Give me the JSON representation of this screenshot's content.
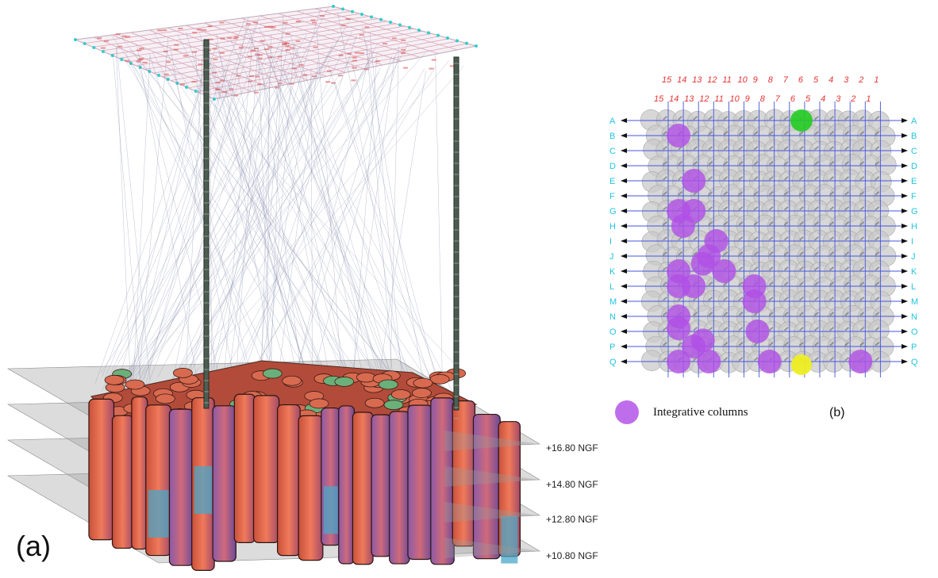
{
  "panel_a": {
    "label": "(a)",
    "levels": [
      "+16.80 NGF",
      "+14.80 NGF",
      "+12.80 NGF",
      "+10.80 NGF"
    ]
  },
  "panel_b": {
    "label": "(b)",
    "top_numbers_upper": [
      "15",
      "14",
      "13",
      "12",
      "11",
      "10",
      "9",
      "8",
      "7",
      "6",
      "5",
      "4",
      "3",
      "2",
      "1"
    ],
    "top_numbers_lower": [
      "15",
      "14",
      "13",
      "12",
      "11",
      "10",
      "9",
      "8",
      "7",
      "6",
      "5",
      "4",
      "3",
      "2",
      "1"
    ],
    "row_letters": [
      "A",
      "B",
      "C",
      "D",
      "E",
      "F",
      "G",
      "H",
      "I",
      "J",
      "K",
      "L",
      "M",
      "N",
      "O",
      "P",
      "Q"
    ],
    "legend_label": "Integrative columns",
    "colors": {
      "grid": "#4455dd",
      "column": "#c9c9c9",
      "integrative": "#b04fe6",
      "green": "#22cc22",
      "yellow": "#eeee22",
      "col_numbers": "#e53333",
      "row_letters": "#22c4e0"
    }
  }
}
